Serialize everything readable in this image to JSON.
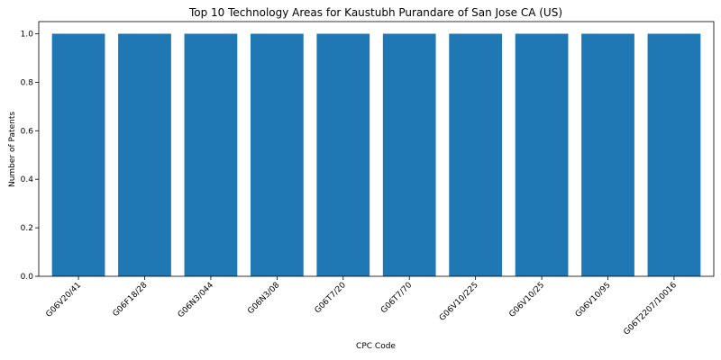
{
  "chart_data": {
    "type": "bar",
    "title": "Top 10 Technology Areas for Kaustubh Purandare of San Jose CA (US)",
    "xlabel": "CPC Code",
    "ylabel": "Number of Patents",
    "categories": [
      "G06V20/41",
      "G06F18/28",
      "G06N3/044",
      "G06N3/08",
      "G06T7/20",
      "G06T7/70",
      "G06V10/225",
      "G06V10/25",
      "G06V10/95",
      "G06T2207/10016"
    ],
    "values": [
      1,
      1,
      1,
      1,
      1,
      1,
      1,
      1,
      1,
      1
    ],
    "ylim": [
      0,
      1.05
    ],
    "yticks": [
      0.0,
      0.2,
      0.4,
      0.6,
      0.8,
      1.0
    ],
    "bar_color": "#1f77b4",
    "grid": false,
    "legend": false
  }
}
